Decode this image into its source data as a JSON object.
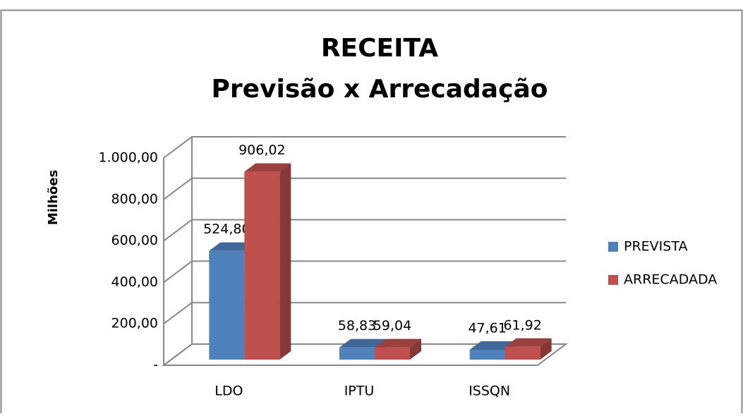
{
  "chart_data": {
    "type": "bar3d",
    "title": "RECEITA",
    "subtitle": "Previsão x Arrecadação",
    "y_label": "Milhões",
    "categories": [
      "LDO",
      "IPTU",
      "ISSQN"
    ],
    "series": [
      {
        "name": "PREVISTA",
        "color": "#4f81bd",
        "values": [
          524.8,
          58.83,
          47.61
        ],
        "value_labels": [
          "524,80",
          "58,83",
          "47,61"
        ]
      },
      {
        "name": "ARRECADADA",
        "color": "#c0504d",
        "values": [
          906.02,
          59.04,
          61.92
        ],
        "value_labels": [
          "906,02",
          "59,04",
          "61,92"
        ]
      }
    ],
    "ylim": [
      0,
      1000
    ],
    "yticks": [
      {
        "value": 0,
        "label": "-"
      },
      {
        "value": 200,
        "label": "200,00"
      },
      {
        "value": 400,
        "label": "400,00"
      },
      {
        "value": 600,
        "label": "600,00"
      },
      {
        "value": 800,
        "label": "800,00"
      },
      {
        "value": 1000,
        "label": "1.000,00"
      }
    ],
    "grid": true,
    "legend": "right"
  }
}
